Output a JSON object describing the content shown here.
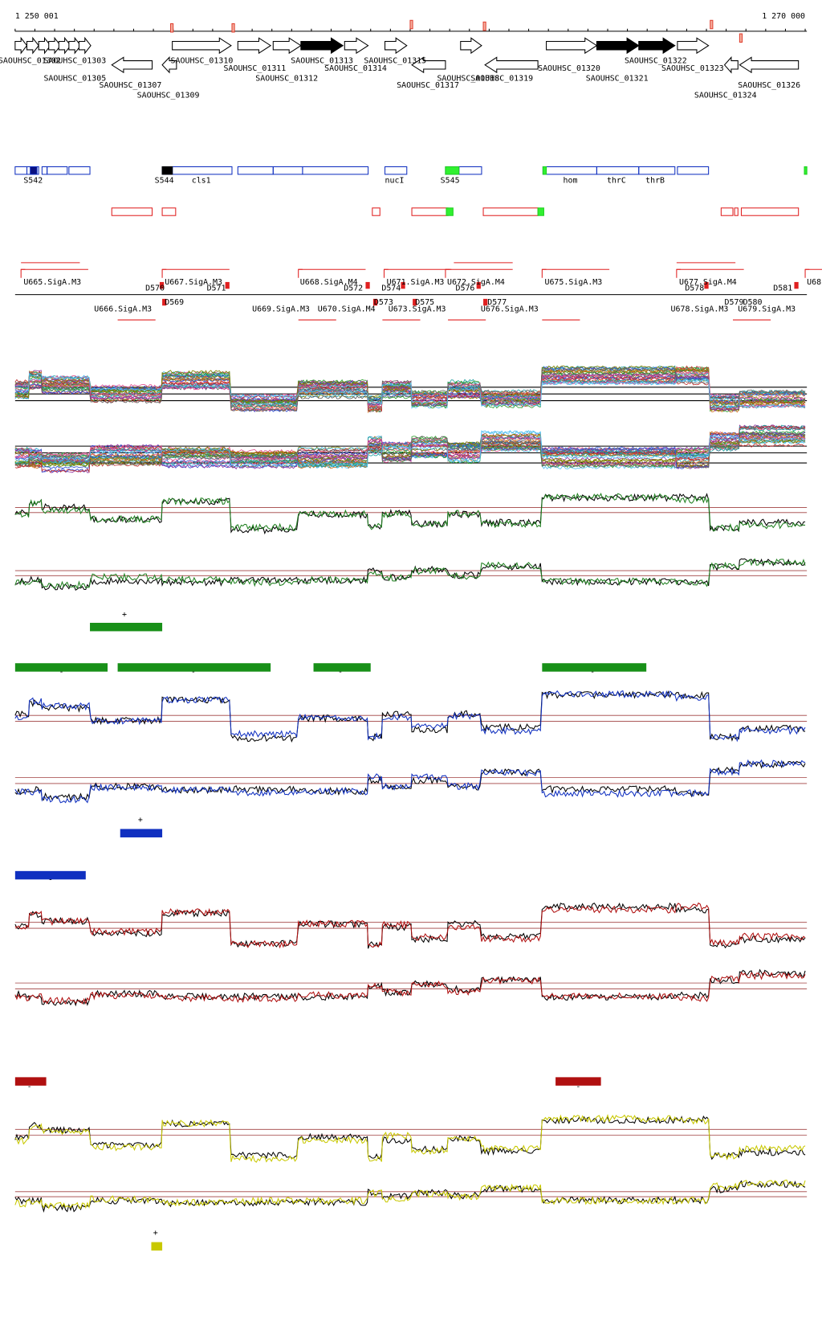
{
  "ruler": {
    "start": "1 250 001",
    "end": "1 270 000"
  },
  "genes": [
    "SAOUHSC_01302",
    "SAOUHSC_01303",
    "SAOUHSC_01305",
    "SAOUHSC_01307",
    "SAOUHSC_01309",
    "SAOUHSC_01310",
    "SAOUHSC_01311",
    "SAOUHSC_01312",
    "SAOUHSC_01313",
    "SAOUHSC_01314",
    "SAOUHSC_01315",
    "SAOUHSC_01317",
    "SAOUHSC_01318",
    "SAOUHSC_01319",
    "SAOUHSC_01320",
    "SAOUHSC_01321",
    "SAOUHSC_01322",
    "SAOUHSC_01323",
    "SAOUHSC_01324",
    "SAOUHSC_01326"
  ],
  "features": [
    "S542",
    "S544",
    "cls1",
    "nucI",
    "S545",
    "hom",
    "thrC",
    "thrB"
  ],
  "promoters": [
    "U665.SigA.M3",
    "U667.SigA.M3",
    "U668.SigA.M4",
    "U671.SigA.M3",
    "U672.SigA.M4",
    "U675.SigA.M3",
    "U677.SigA.M4",
    "U68",
    "D570",
    "D571",
    "D572",
    "D574",
    "D576",
    "D578",
    "D581",
    "D569",
    "D573",
    "D575",
    "D577",
    "D579",
    "D580",
    "U666.SigA.M3",
    "U669.SigA.M3",
    "U670.SigA.M4",
    "U673.SigA.M3",
    "U676.SigA.M3",
    "U678.SigA.M3",
    "U679.SigA.M3"
  ],
  "segment_labels": [
    "+",
    "-",
    "-",
    "-",
    "-",
    "+",
    "-",
    "-",
    "-",
    "+"
  ]
}
